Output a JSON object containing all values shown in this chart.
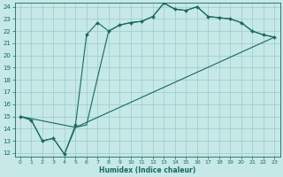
{
  "xlabel": "Humidex (Indice chaleur)",
  "xlim": [
    0,
    23
  ],
  "ylim": [
    12,
    24
  ],
  "xticks": [
    0,
    1,
    2,
    3,
    4,
    5,
    6,
    7,
    8,
    9,
    10,
    11,
    12,
    13,
    14,
    15,
    16,
    17,
    18,
    19,
    20,
    21,
    22,
    23
  ],
  "yticks": [
    12,
    13,
    14,
    15,
    16,
    17,
    18,
    19,
    20,
    21,
    22,
    23,
    24
  ],
  "bg_color": "#c6e8e6",
  "grid_color": "#99ccca",
  "line_color": "#1a6860",
  "curve1_x": [
    0,
    1,
    2,
    3,
    4,
    5,
    6,
    7,
    8,
    9,
    10,
    11,
    12,
    13,
    14,
    15,
    16,
    17,
    18,
    19,
    20,
    21,
    22,
    23
  ],
  "curve1_y": [
    15,
    14.7,
    13.0,
    13.2,
    11.9,
    14.3,
    21.7,
    22.7,
    22.0,
    22.5,
    22.7,
    22.8,
    23.2,
    24.3,
    23.8,
    23.7,
    24.0,
    23.2,
    23.1,
    23.0,
    22.7,
    22.0,
    21.7,
    21.5
  ],
  "curve2_x": [
    0,
    1,
    2,
    3,
    4,
    5,
    6,
    7,
    8,
    9,
    10,
    11,
    12,
    13,
    14,
    15,
    16,
    17,
    18,
    19,
    20,
    21,
    22,
    23
  ],
  "curve2_y": [
    15,
    14.7,
    13.0,
    13.2,
    11.9,
    14.1,
    14.3,
    18.2,
    22.0,
    22.5,
    22.7,
    22.8,
    23.2,
    24.3,
    23.8,
    23.7,
    24.0,
    23.2,
    23.1,
    23.0,
    22.7,
    22.0,
    21.7,
    21.5
  ],
  "curve3_x": [
    0,
    5,
    23
  ],
  "curve3_y": [
    15,
    14.1,
    21.5
  ]
}
